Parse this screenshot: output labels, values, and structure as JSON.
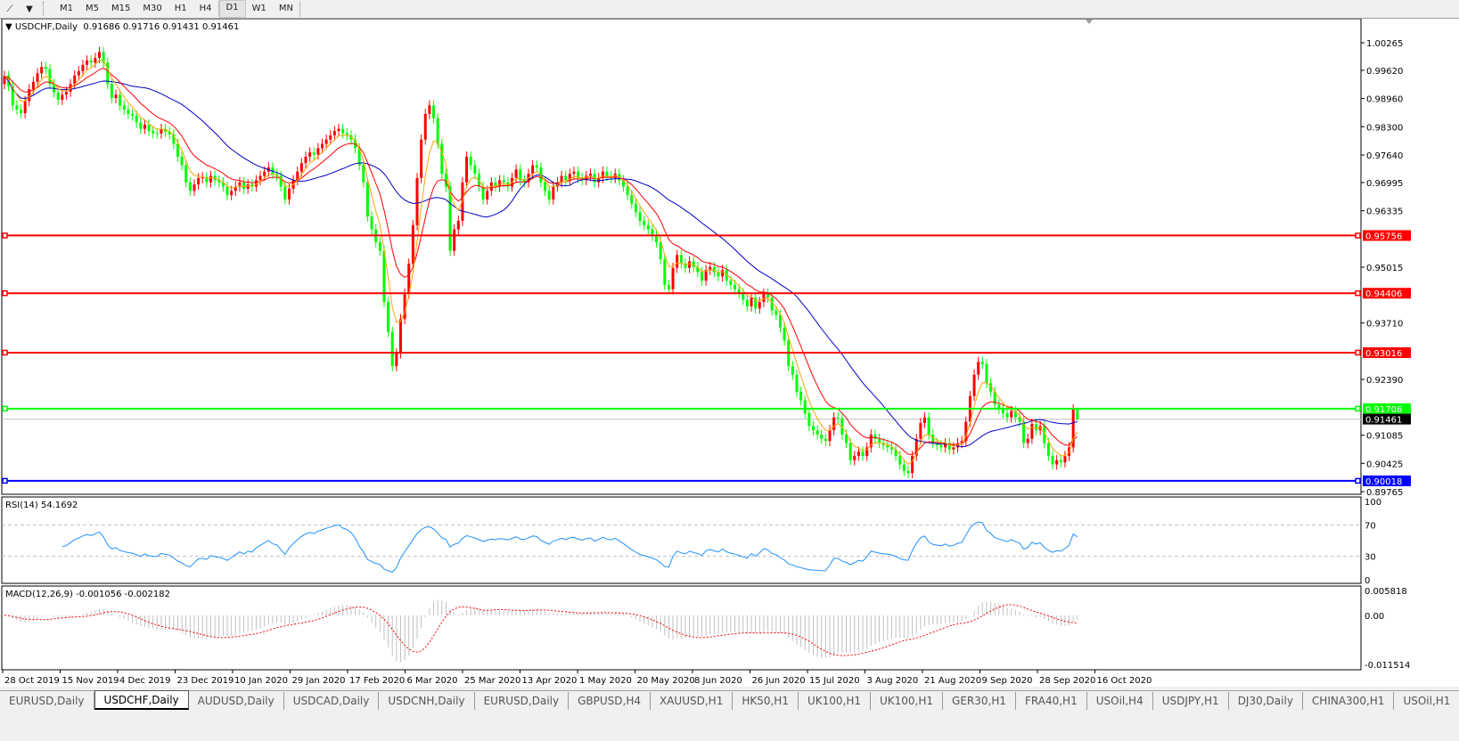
{
  "toolbar": {
    "icons": [
      "line-tools-icon",
      "dropdown-arrow-icon"
    ],
    "timeframes": [
      "M1",
      "M5",
      "M15",
      "M30",
      "H1",
      "H4",
      "D1",
      "W1",
      "MN"
    ],
    "active_timeframe": "D1"
  },
  "chart": {
    "symbol_label": "USDCHF,Daily",
    "ohlc": "0.91686 0.91716 0.91431 0.91461"
  },
  "chart_data": {
    "type": "candlestick",
    "symbol": "USDCHF",
    "timeframe": "Daily",
    "first_open": 0.993,
    "closes": [
      0.9949,
      0.9925,
      0.988,
      0.987,
      0.9862,
      0.989,
      0.9918,
      0.9935,
      0.9955,
      0.997,
      0.9965,
      0.993,
      0.991,
      0.9893,
      0.9905,
      0.9912,
      0.993,
      0.995,
      0.996,
      0.9975,
      0.9985,
      0.998,
      0.9991,
      1.0005,
      0.998,
      0.993,
      0.9897,
      0.9905,
      0.988,
      0.987,
      0.986,
      0.9856,
      0.984,
      0.9825,
      0.9835,
      0.982,
      0.9815,
      0.9814,
      0.9825,
      0.9818,
      0.9812,
      0.979,
      0.976,
      0.974,
      0.97,
      0.968,
      0.9695,
      0.971,
      0.9712,
      0.97,
      0.9715,
      0.9705,
      0.97,
      0.969,
      0.967,
      0.968,
      0.969,
      0.97,
      0.9685,
      0.9695,
      0.969,
      0.9705,
      0.9715,
      0.9725,
      0.9735,
      0.972,
      0.9715,
      0.969,
      0.966,
      0.9685,
      0.9705,
      0.9725,
      0.9745,
      0.976,
      0.977,
      0.9765,
      0.978,
      0.979,
      0.98,
      0.981,
      0.982,
      0.9825,
      0.9815,
      0.981,
      0.98,
      0.978,
      0.974,
      0.97,
      0.962,
      0.959,
      0.956,
      0.954,
      0.942,
      0.935,
      0.927,
      0.93,
      0.938,
      0.944,
      0.951,
      0.96,
      0.971,
      0.98,
      0.986,
      0.988,
      0.985,
      0.979,
      0.972,
      0.969,
      0.954,
      0.959,
      0.961,
      0.97,
      0.976,
      0.974,
      0.972,
      0.969,
      0.966,
      0.968,
      0.97,
      0.969,
      0.9705,
      0.97,
      0.969,
      0.971,
      0.973,
      0.9705,
      0.97,
      0.972,
      0.974,
      0.9735,
      0.97,
      0.968,
      0.966,
      0.969,
      0.97,
      0.9715,
      0.9705,
      0.972,
      0.9725,
      0.971,
      0.9705,
      0.9715,
      0.972,
      0.97,
      0.971,
      0.9725,
      0.9715,
      0.971,
      0.972,
      0.9705,
      0.969,
      0.967,
      0.965,
      0.963,
      0.961,
      0.96,
      0.959,
      0.9575,
      0.956,
      0.952,
      0.946,
      0.945,
      0.95,
      0.953,
      0.951,
      0.95,
      0.9515,
      0.9502,
      0.949,
      0.947,
      0.9495,
      0.9502,
      0.949,
      0.948,
      0.9495,
      0.947,
      0.946,
      0.945,
      0.944,
      0.9425,
      0.941,
      0.943,
      0.9405,
      0.942,
      0.944,
      0.943,
      0.94,
      0.939,
      0.936,
      0.933,
      0.927,
      0.925,
      0.921,
      0.919,
      0.916,
      0.913,
      0.912,
      0.911,
      0.91,
      0.9095,
      0.912,
      0.915,
      0.9148,
      0.911,
      0.909,
      0.905,
      0.906,
      0.907,
      0.906,
      0.908,
      0.911,
      0.91,
      0.909,
      0.9085,
      0.908,
      0.9075,
      0.906,
      0.904,
      0.9025,
      0.902,
      0.906,
      0.91,
      0.9137,
      0.915,
      0.911,
      0.909,
      0.9085,
      0.908,
      0.909,
      0.9075,
      0.908,
      0.909,
      0.9095,
      0.914,
      0.92,
      0.925,
      0.928,
      0.9275,
      0.923,
      0.921,
      0.918,
      0.917,
      0.916,
      0.915,
      0.9165,
      0.915,
      0.914,
      0.909,
      0.91,
      0.9135,
      0.912,
      0.913,
      0.909,
      0.906,
      0.904,
      0.905,
      0.9045,
      0.906,
      0.908,
      0.9169,
      0.91461
    ],
    "last_bar": {
      "open": 0.91686,
      "high": 0.91716,
      "low": 0.91431,
      "close": 0.91461
    },
    "ylim": [
      0.89765,
      1.00265
    ],
    "price_ticks": [
      "1.00265",
      "0.99620",
      "0.98960",
      "0.98300",
      "0.97640",
      "0.96995",
      "0.96335",
      "0.95015",
      "0.93710",
      "0.92390",
      "0.91085",
      "0.90425",
      "0.89765"
    ],
    "levels": [
      {
        "price": 0.95756,
        "label": "0.95756",
        "color": "#ff0000"
      },
      {
        "price": 0.94406,
        "label": "0.94406",
        "color": "#ff0000"
      },
      {
        "price": 0.93016,
        "label": "0.93016",
        "color": "#ff0000"
      },
      {
        "price": 0.91706,
        "label": "0.91706",
        "color": "#00ff00"
      },
      {
        "price": 0.90018,
        "label": "0.90018",
        "color": "#0000ff"
      }
    ],
    "bid": {
      "price": 0.91461,
      "label": "0.91461"
    },
    "date_labels": [
      "28 Oct 2019",
      "15 Nov 2019",
      "4 Dec 2019",
      "23 Dec 2019",
      "10 Jan 2020",
      "29 Jan 2020",
      "17 Feb 2020",
      "6 Mar 2020",
      "25 Mar 2020",
      "13 Apr 2020",
      "1 May 2020",
      "20 May 2020",
      "8 Jun 2020",
      "26 Jun 2020",
      "15 Jul 2020",
      "3 Aug 2020",
      "21 Aug 2020",
      "9 Sep 2020",
      "28 Sep 2020",
      "16 Oct 2020"
    ],
    "colors": {
      "bull": "#ff0000",
      "bear": "#00ff00",
      "ma_fast": "#ffa500",
      "ma_mid": "#ff0000",
      "ma_slow": "#0000c8",
      "rsi": "#1e90ff",
      "macd_hist": "#c0c0c0",
      "macd_signal": "#ff0000"
    },
    "rsi": {
      "label": "RSI(14) 54.1692",
      "ticks": [
        "100",
        "70",
        "30",
        "0"
      ],
      "levels": [
        70,
        30
      ],
      "range": [
        0,
        100
      ]
    },
    "macd": {
      "label": "MACD(12,26,9) -0.001056 -0.002182",
      "ticks": [
        "0.005818",
        "0.00",
        "-0.011514"
      ],
      "range": [
        -0.011514,
        0.005818
      ]
    }
  },
  "tabs": [
    {
      "label": "EURUSD,Daily"
    },
    {
      "label": "USDCHF,Daily",
      "active": true
    },
    {
      "label": "AUDUSD,Daily"
    },
    {
      "label": "USDCAD,Daily"
    },
    {
      "label": "USDCNH,Daily"
    },
    {
      "label": "EURUSD,Daily"
    },
    {
      "label": "GBPUSD,H4"
    },
    {
      "label": "XAUUSD,H1"
    },
    {
      "label": "HK50,H1"
    },
    {
      "label": "UK100,H1"
    },
    {
      "label": "UK100,H1"
    },
    {
      "label": "GER30,H1"
    },
    {
      "label": "FRA40,H1"
    },
    {
      "label": "USOil,H4"
    },
    {
      "label": "USDJPY,H1"
    },
    {
      "label": "DJ30,Daily"
    },
    {
      "label": "CHINA300,H1"
    },
    {
      "label": "USOil,H1"
    }
  ]
}
